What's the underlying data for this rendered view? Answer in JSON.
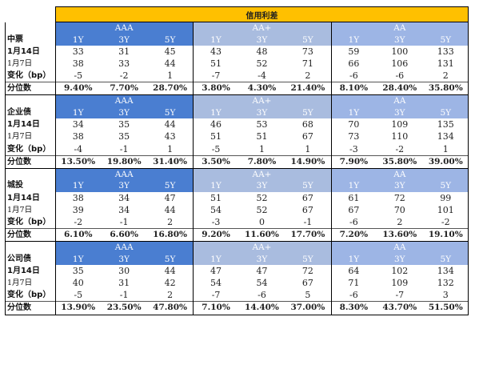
{
  "title": "信用利差",
  "blocks": [
    {
      "name": "中票",
      "groups": [
        "AAA",
        "AA+",
        "AA"
      ],
      "tenors": [
        "1Y",
        "3Y",
        "5Y"
      ],
      "rows": [
        {
          "label": "1月14日",
          "values": [
            "33",
            "31",
            "45",
            "43",
            "48",
            "73",
            "59",
            "100",
            "133"
          ]
        },
        {
          "label": "1月7日",
          "values": [
            "38",
            "33",
            "44",
            "51",
            "52",
            "71",
            "66",
            "106",
            "131"
          ]
        },
        {
          "label": "变化（bp）",
          "values": [
            "-5",
            "-2",
            "1",
            "-7",
            "-4",
            "2",
            "-6",
            "-6",
            "2"
          ]
        },
        {
          "label": "分位数",
          "values": [
            "9.40%",
            "7.70%",
            "28.70%",
            "3.80%",
            "4.30%",
            "21.40%",
            "8.10%",
            "28.40%",
            "35.80%"
          ]
        }
      ]
    },
    {
      "name": "企业债",
      "groups": [
        "AAA",
        "AA+",
        "AA"
      ],
      "tenors": [
        "1Y",
        "3Y",
        "5Y"
      ],
      "rows": [
        {
          "label": "1月14日",
          "values": [
            "34",
            "35",
            "44",
            "46",
            "53",
            "68",
            "70",
            "109",
            "135"
          ]
        },
        {
          "label": "1月7日",
          "values": [
            "38",
            "35",
            "43",
            "51",
            "51",
            "67",
            "73",
            "110",
            "134"
          ]
        },
        {
          "label": "变化（bp）",
          "values": [
            "-4",
            "-1",
            "1",
            "-5",
            "1",
            "1",
            "-3",
            "-2",
            "1"
          ]
        },
        {
          "label": "分位数",
          "values": [
            "13.50%",
            "19.80%",
            "31.40%",
            "3.50%",
            "7.80%",
            "14.90%",
            "7.90%",
            "35.80%",
            "39.00%"
          ]
        }
      ]
    },
    {
      "name": "城投",
      "groups": [
        "AAA",
        "AA+",
        "AA"
      ],
      "tenors": [
        "1Y",
        "3Y",
        "5Y"
      ],
      "rows": [
        {
          "label": "1月14日",
          "values": [
            "38",
            "34",
            "47",
            "51",
            "52",
            "67",
            "61",
            "72",
            "99"
          ]
        },
        {
          "label": "1月7日",
          "values": [
            "39",
            "34",
            "44",
            "54",
            "52",
            "67",
            "67",
            "70",
            "101"
          ]
        },
        {
          "label": "变化（bp）",
          "values": [
            "-2",
            "-1",
            "2",
            "-3",
            "0",
            "-1",
            "-6",
            "2",
            "-2"
          ]
        },
        {
          "label": "分位数",
          "values": [
            "6.10%",
            "6.60%",
            "16.80%",
            "9.20%",
            "11.60%",
            "17.70%",
            "7.20%",
            "13.60%",
            "19.10%"
          ]
        }
      ]
    },
    {
      "name": "公司债",
      "groups": [
        "AAA",
        "AA+",
        "AA"
      ],
      "tenors": [
        "1Y",
        "3Y",
        "5Y"
      ],
      "rows": [
        {
          "label": "1月14日",
          "values": [
            "35",
            "30",
            "44",
            "47",
            "47",
            "72",
            "64",
            "102",
            "134"
          ]
        },
        {
          "label": "1月7日",
          "values": [
            "40",
            "31",
            "42",
            "54",
            "54",
            "67",
            "71",
            "109",
            "132"
          ]
        },
        {
          "label": "变化（bp）",
          "values": [
            "-5",
            "-1",
            "2",
            "-7",
            "-6",
            "5",
            "-6",
            "-7",
            "3"
          ]
        },
        {
          "label": "分位数",
          "values": [
            "13.90%",
            "23.50%",
            "47.80%",
            "7.10%",
            "14.40%",
            "37.00%",
            "8.30%",
            "43.70%",
            "51.50%"
          ]
        }
      ]
    }
  ]
}
